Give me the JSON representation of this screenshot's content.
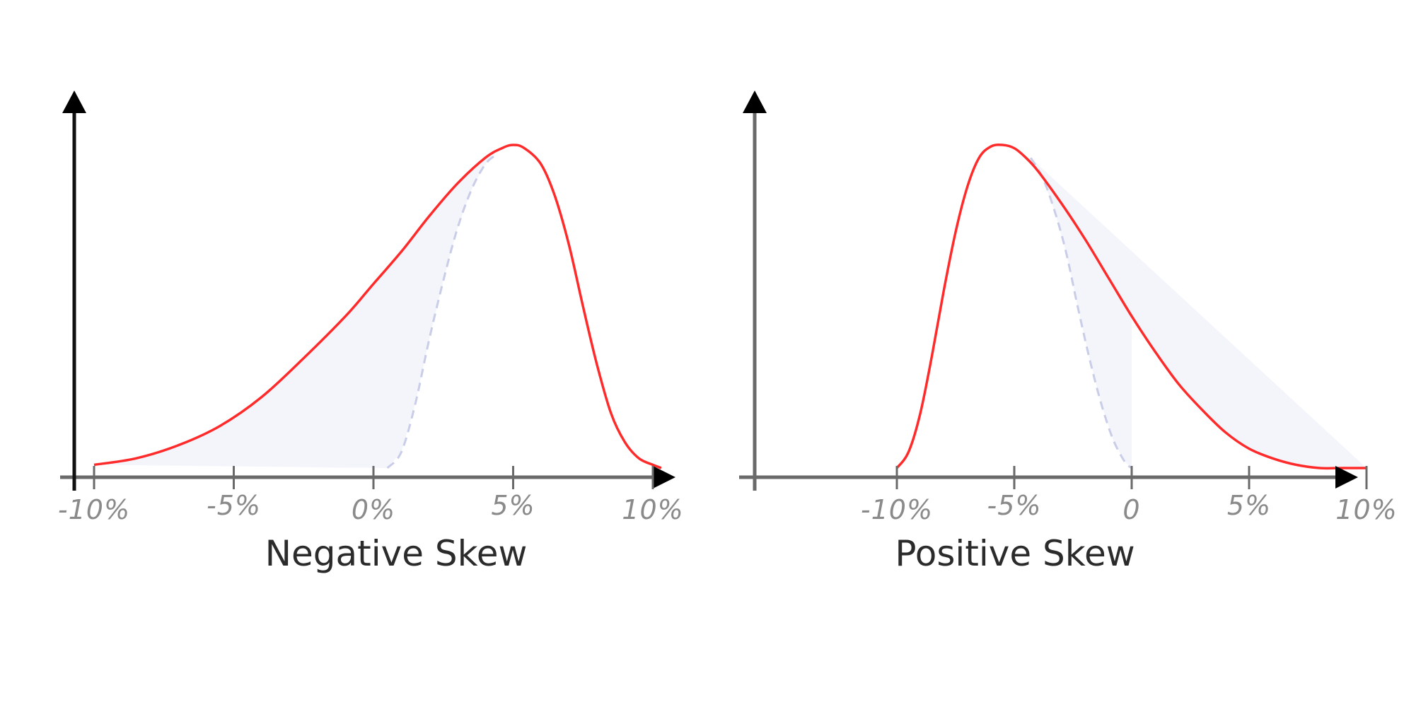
{
  "colors": {
    "curve": "#ff2a2a",
    "normal_dashed": "#c9cde8",
    "fill": "#f3f5fb",
    "y_axis": "#111111",
    "y_axis_right": "#6a6a6a",
    "x_axis": "#6a6a6a",
    "tick_label": "#8a8a8a",
    "title": "#2b2b2b"
  },
  "chart_data": [
    {
      "type": "line",
      "title": "Negative Skew",
      "xlabel": "",
      "ylabel": "",
      "tick_values": [
        -10,
        -5,
        0,
        5,
        10
      ],
      "tick_labels": [
        "-10%",
        "-5%",
        "0%",
        "5%",
        "10%"
      ],
      "xlim": [
        -10.5,
        11.5
      ],
      "ylim": [
        0,
        1.05
      ],
      "grid": false,
      "legend": "none",
      "series": [
        {
          "role": "skewed-curve",
          "x": [
            -10.0,
            -8.5,
            -7.0,
            -5.5,
            -4.0,
            -2.5,
            -1.0,
            0.0,
            1.0,
            2.0,
            3.0,
            4.0,
            4.6,
            5.0,
            5.4,
            6.0,
            6.5,
            7.0,
            7.5,
            8.0,
            8.5,
            9.0,
            9.5,
            10.0,
            10.3
          ],
          "y": [
            0.01,
            0.03,
            0.07,
            0.13,
            0.22,
            0.34,
            0.47,
            0.57,
            0.67,
            0.78,
            0.88,
            0.96,
            0.99,
            1.0,
            0.99,
            0.94,
            0.84,
            0.69,
            0.5,
            0.32,
            0.17,
            0.08,
            0.03,
            0.01,
            0.0
          ]
        },
        {
          "role": "normal-dashed",
          "x": [
            0.5,
            1.0,
            1.5,
            2.0,
            2.5,
            3.0,
            3.5,
            4.0,
            4.4
          ],
          "y": [
            0.0,
            0.05,
            0.2,
            0.4,
            0.58,
            0.74,
            0.86,
            0.94,
            0.97
          ]
        }
      ]
    },
    {
      "type": "line",
      "title": "Positive Skew",
      "xlabel": "",
      "ylabel": "",
      "tick_values": [
        -10,
        -5,
        0,
        5,
        10
      ],
      "tick_labels": [
        "-10%",
        "-5%",
        "0",
        "5%",
        "10%"
      ],
      "xlim": [
        -11,
        12.5
      ],
      "ylim": [
        0,
        1.05
      ],
      "grid": false,
      "legend": "none",
      "series": [
        {
          "role": "skewed-curve",
          "x": [
            -10.0,
            -9.5,
            -9.0,
            -8.5,
            -8.0,
            -7.5,
            -7.0,
            -6.5,
            -6.0,
            -5.5,
            -5.0,
            -4.5,
            -4.0,
            -3.0,
            -2.0,
            -1.0,
            0.0,
            1.0,
            2.0,
            3.0,
            4.0,
            5.0,
            6.0,
            7.0,
            8.0,
            9.0,
            10.0
          ],
          "y": [
            0.0,
            0.05,
            0.17,
            0.35,
            0.55,
            0.73,
            0.87,
            0.96,
            0.995,
            1.0,
            0.99,
            0.96,
            0.92,
            0.82,
            0.71,
            0.59,
            0.47,
            0.36,
            0.26,
            0.18,
            0.11,
            0.06,
            0.03,
            0.01,
            0.0,
            0.0,
            0.0
          ]
        },
        {
          "role": "normal-dashed",
          "x": [
            -4.3,
            -3.8,
            -3.3,
            -2.8,
            -2.3,
            -1.8,
            -1.3,
            -0.8,
            -0.3,
            0.0
          ],
          "y": [
            0.96,
            0.9,
            0.8,
            0.67,
            0.5,
            0.34,
            0.2,
            0.09,
            0.02,
            0.0
          ]
        }
      ]
    }
  ]
}
